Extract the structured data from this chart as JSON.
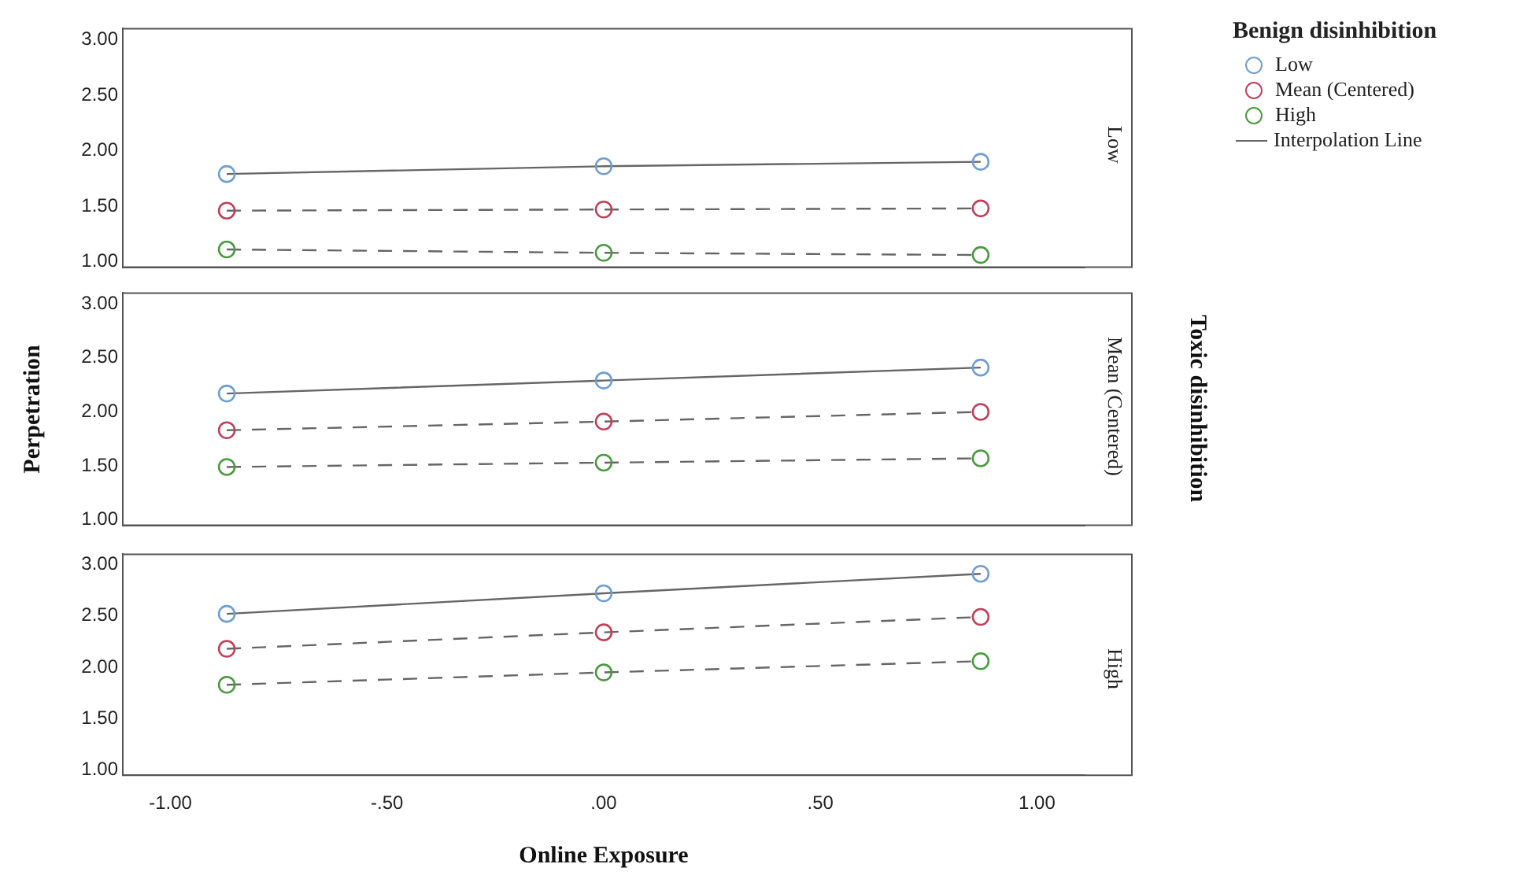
{
  "chart_data": [
    {
      "type": "line",
      "x": [
        -0.87,
        0,
        0.87
      ],
      "xlim": [
        -1.11,
        1.11
      ],
      "ylim": [
        0.95,
        3.1
      ],
      "yticks": [
        {
          "value": 1,
          "label": "1.00"
        },
        {
          "value": 1.5,
          "label": "1.50"
        },
        {
          "value": 2,
          "label": "2.00"
        },
        {
          "value": 2.5,
          "label": "2.50"
        },
        {
          "value": 3,
          "label": "3.00"
        }
      ],
      "tick_labels": "y",
      "marker": "circle",
      "legend": "right",
      "legend_title": "Benign disinhibition",
      "y2label": "Low",
      "annotations": [
        "Interpolation Line"
      ],
      "series": [
        {
          "name": "Low",
          "color": "#6f9fd0",
          "line_style": "solid",
          "values": [
            1.79,
            1.86,
            1.9
          ]
        },
        {
          "name": "Mean (Centered)",
          "color": "#c0405a",
          "line_style": "dashed",
          "values": [
            1.46,
            1.47,
            1.48
          ]
        },
        {
          "name": "High",
          "color": "#4a9a40",
          "line_style": "dashed",
          "values": [
            1.11,
            1.08,
            1.06
          ]
        }
      ]
    },
    {
      "type": "line",
      "x": [
        -0.87,
        0,
        0.87
      ],
      "xlim": [
        -1.11,
        1.11
      ],
      "ylim": [
        0.95,
        3.1
      ],
      "yticks": [
        {
          "value": 1,
          "label": "1.00"
        },
        {
          "value": 1.5,
          "label": "1.50"
        },
        {
          "value": 2,
          "label": "2.00"
        },
        {
          "value": 2.5,
          "label": "2.50"
        },
        {
          "value": 3,
          "label": "3.00"
        }
      ],
      "tick_labels": "y",
      "marker": "circle",
      "ylabel": "Perpetration",
      "y2label": "Mean (Centered)",
      "annotations": [
        "Toxic disinhibition"
      ],
      "series": [
        {
          "color": "#6f9fd0",
          "line_style": "solid",
          "values": [
            2.17,
            2.29,
            2.41
          ]
        },
        {
          "color": "#c0405a",
          "line_style": "dashed",
          "values": [
            1.83,
            1.91,
            2.0
          ]
        },
        {
          "color": "#4a9a40",
          "line_style": "dashed",
          "values": [
            1.49,
            1.53,
            1.57
          ]
        }
      ]
    },
    {
      "type": "line",
      "x": [
        -0.87,
        0,
        0.87
      ],
      "xlim": [
        -1.11,
        1.11
      ],
      "ylim": [
        0.95,
        3.1
      ],
      "xticks": [
        {
          "value": -1,
          "label": "-1.00"
        },
        {
          "value": -0.5,
          "label": "-.50"
        },
        {
          "value": 0,
          "label": ".00"
        },
        {
          "value": 0.5,
          "label": ".50"
        },
        {
          "value": 1,
          "label": "1.00"
        }
      ],
      "yticks": [
        {
          "value": 1,
          "label": "1.00"
        },
        {
          "value": 1.5,
          "label": "1.50"
        },
        {
          "value": 2,
          "label": "2.00"
        },
        {
          "value": 2.5,
          "label": "2.50"
        },
        {
          "value": 3,
          "label": "3.00"
        }
      ],
      "marker": "circle",
      "xlabel": "Online Exposure",
      "y2label": "High",
      "series": [
        {
          "color": "#6f9fd0",
          "line_style": "solid",
          "values": [
            2.52,
            2.72,
            2.91
          ]
        },
        {
          "color": "#c0405a",
          "line_style": "dashed",
          "values": [
            2.18,
            2.34,
            2.49
          ]
        },
        {
          "color": "#4a9a40",
          "line_style": "dashed",
          "values": [
            1.83,
            1.95,
            2.06
          ]
        }
      ]
    }
  ]
}
